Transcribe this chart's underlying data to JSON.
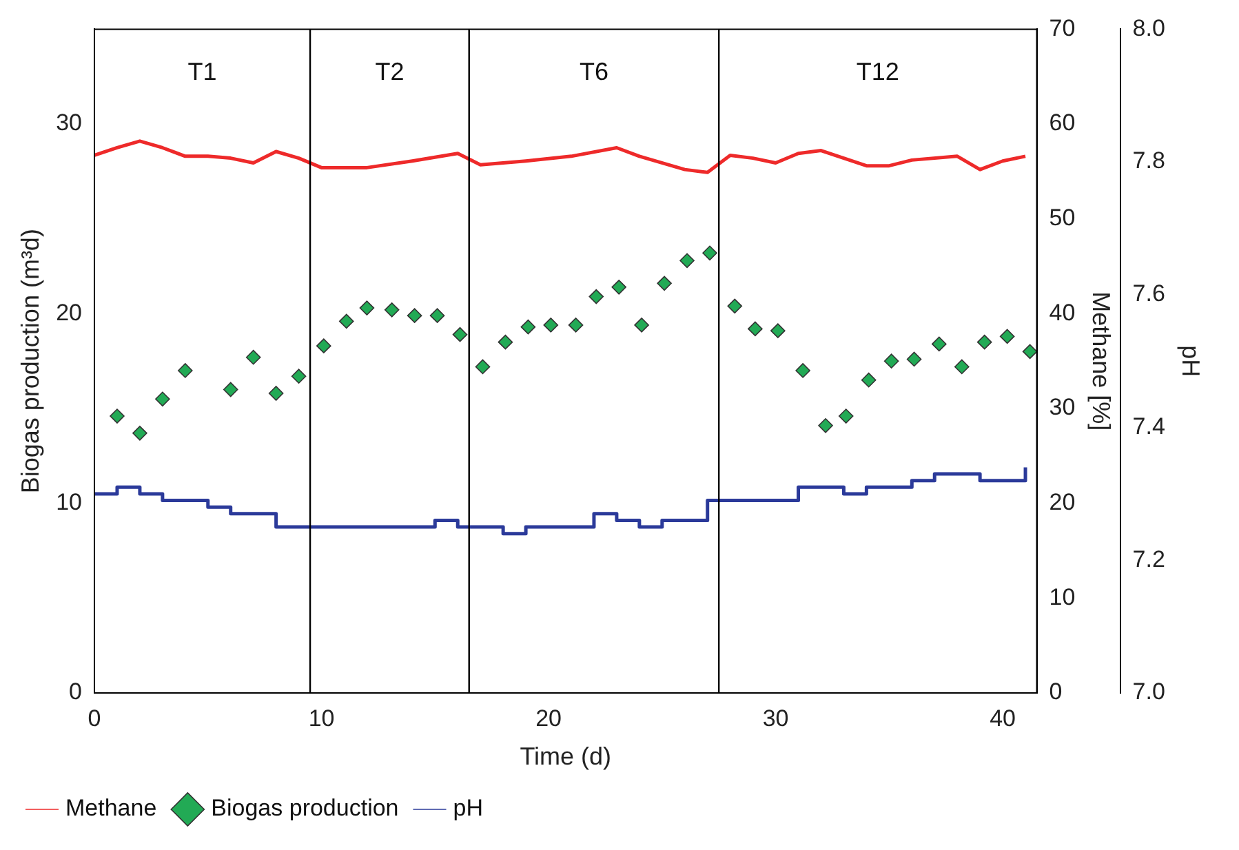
{
  "chart_data": {
    "type": "line",
    "xlabel": "Time (d)",
    "ylabel": "Biogas production (m³d)",
    "y2label": "Methane [%]",
    "y3label": "pH",
    "xlim": [
      0,
      41.5
    ],
    "xticks": [
      0,
      10,
      20,
      30,
      40
    ],
    "ylim": [
      0,
      35
    ],
    "yticks": [
      0,
      10,
      20,
      30
    ],
    "y2lim": [
      0,
      70
    ],
    "y2ticks": [
      0,
      10,
      20,
      30,
      40,
      50,
      60,
      70
    ],
    "y3lim": [
      7.0,
      8.0
    ],
    "y3ticks": [
      {
        "value": 7.0,
        "label": "7.0"
      },
      {
        "value": 7.2,
        "label": "7.2"
      },
      {
        "value": 7.4,
        "label": "7.4"
      },
      {
        "value": 7.6,
        "label": "7.6"
      },
      {
        "value": 7.8,
        "label": "7.8"
      },
      {
        "value": 8.0,
        "label": "8.0"
      }
    ],
    "grid": false,
    "legend": "bottom left",
    "ref_lines": [
      {
        "axis": "x",
        "value": 9.5,
        "color": "#000000"
      },
      {
        "axis": "x",
        "value": 16.5,
        "color": "#000000"
      },
      {
        "axis": "x",
        "value": 27.5,
        "color": "#000000"
      }
    ],
    "annotations": [
      "T1",
      "T2",
      "T6",
      "T12"
    ],
    "series": [
      {
        "name": "Methane",
        "axis": "y2",
        "color": "#ee2a2a",
        "marker": "none",
        "x": [
          0,
          1,
          2,
          3,
          4,
          5,
          6,
          7,
          8,
          9,
          10,
          12,
          14,
          16,
          17,
          19,
          21,
          23,
          24,
          26,
          27,
          28,
          29,
          30,
          31,
          32,
          34,
          35,
          36,
          38,
          39,
          40,
          41
        ],
        "values": [
          56.7,
          57.5,
          58.2,
          57.5,
          56.6,
          56.6,
          56.4,
          55.9,
          57.1,
          56.4,
          55.4,
          55.4,
          56.1,
          56.9,
          55.7,
          56.1,
          56.6,
          57.5,
          56.6,
          55.2,
          54.9,
          56.7,
          56.4,
          55.9,
          56.9,
          57.2,
          55.6,
          55.6,
          56.2,
          56.6,
          55.2,
          56.1,
          56.6
        ]
      },
      {
        "name": "Biogas production",
        "type": "scatter",
        "axis": "y",
        "color": "#22aa55",
        "marker": "diamond",
        "x": [
          1,
          2,
          3,
          4,
          6,
          7,
          8,
          9,
          10.1,
          11.1,
          12,
          13.1,
          14.1,
          15.1,
          16.1,
          17.1,
          18.1,
          19.1,
          20.1,
          21.2,
          22.1,
          23.1,
          24.1,
          25.1,
          26.1,
          27.1,
          28.2,
          29.1,
          30.1,
          31.2,
          32.2,
          33.1,
          34.1,
          35.1,
          36.1,
          37.2,
          38.2,
          39.2,
          40.2,
          41.2
        ],
        "values": [
          14.6,
          13.7,
          15.5,
          17.0,
          16.0,
          17.7,
          15.8,
          16.7,
          18.3,
          19.6,
          20.3,
          20.2,
          19.9,
          19.9,
          18.9,
          17.2,
          18.5,
          19.3,
          19.4,
          19.4,
          20.9,
          21.4,
          19.4,
          21.6,
          22.8,
          23.2,
          20.4,
          19.2,
          19.1,
          17.0,
          14.1,
          14.6,
          16.5,
          17.5,
          17.6,
          18.4,
          17.2,
          18.5,
          18.8,
          18.0
        ]
      },
      {
        "name": "pH",
        "type": "step",
        "axis": "y3",
        "color": "#2b3a9a",
        "marker": "none",
        "x": [
          0,
          1,
          2,
          3,
          4,
          5,
          6,
          7,
          8,
          9,
          10,
          11,
          12,
          13,
          14,
          15,
          16,
          17,
          18,
          19,
          20,
          21,
          22,
          23,
          24,
          25,
          26,
          27,
          28,
          29,
          30,
          31,
          32,
          33,
          34,
          35,
          36,
          37,
          38,
          39,
          40,
          41
        ],
        "values": [
          7.3,
          7.31,
          7.3,
          7.29,
          7.29,
          7.28,
          7.27,
          7.27,
          7.25,
          7.25,
          7.25,
          7.25,
          7.25,
          7.25,
          7.25,
          7.26,
          7.25,
          7.25,
          7.24,
          7.25,
          7.25,
          7.25,
          7.27,
          7.26,
          7.25,
          7.26,
          7.26,
          7.29,
          7.29,
          7.29,
          7.29,
          7.31,
          7.31,
          7.3,
          7.31,
          7.31,
          7.32,
          7.33,
          7.33,
          7.32,
          7.32,
          7.34
        ]
      }
    ]
  }
}
